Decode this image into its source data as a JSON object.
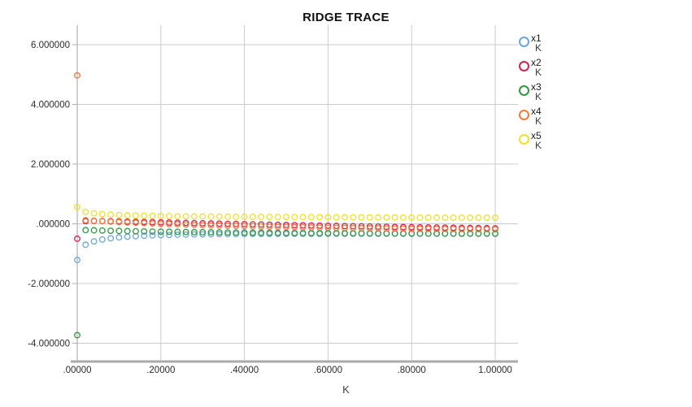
{
  "window": {
    "background": "#FFFFFF"
  },
  "colors": {
    "grid": "#CBCBCB",
    "axis": "#B0B0B0",
    "axis_bottom": "#A9A9A9",
    "tick_text": "#2b2b2b",
    "title_text": "#111111"
  },
  "chart_data": {
    "type": "scatter",
    "title": "RIDGE TRACE",
    "xlabel": "K",
    "ylabel": "",
    "marker": "open-circle",
    "grid": true,
    "legend_position": "right",
    "xlim": [
      0,
      1.054
    ],
    "ylim": [
      -4.56,
      6.65
    ],
    "x_ticks": [
      0,
      0.2,
      0.4,
      0.6,
      0.8,
      1.0
    ],
    "x_tick_labels": [
      ".00000",
      ".20000",
      ".40000",
      ".60000",
      ".80000",
      "1.00000"
    ],
    "y_ticks": [
      6,
      4,
      2,
      0,
      -2,
      -4
    ],
    "y_tick_labels": [
      "6.000000",
      "4.000000",
      "2.000000",
      ".000000",
      "-2.000000",
      "-4.000000"
    ],
    "k": [
      0.0,
      0.02,
      0.04,
      0.06,
      0.08,
      0.1,
      0.12,
      0.14,
      0.16,
      0.18,
      0.2,
      0.22,
      0.24,
      0.26,
      0.28,
      0.3,
      0.32,
      0.34,
      0.36,
      0.38,
      0.4,
      0.42,
      0.44,
      0.46,
      0.48,
      0.5,
      0.52,
      0.54,
      0.56,
      0.58,
      0.6,
      0.62,
      0.64,
      0.66,
      0.68,
      0.7,
      0.72,
      0.74,
      0.76,
      0.78,
      0.8,
      0.82,
      0.84,
      0.86,
      0.88,
      0.9,
      0.92,
      0.94,
      0.96,
      0.98,
      1.0
    ],
    "series": [
      {
        "name": "x1",
        "sublabel": "K",
        "color": "#6CA6D9",
        "values": [
          -1.21,
          -0.7,
          -0.59,
          -0.525,
          -0.485,
          -0.455,
          -0.43,
          -0.415,
          -0.4,
          -0.39,
          -0.38,
          -0.373,
          -0.367,
          -0.361,
          -0.356,
          -0.352,
          -0.349,
          -0.346,
          -0.344,
          -0.342,
          -0.341,
          -0.34,
          -0.339,
          -0.338,
          -0.337,
          -0.336,
          -0.335,
          -0.335,
          -0.334,
          -0.334,
          -0.333,
          -0.333,
          -0.332,
          -0.332,
          -0.331,
          -0.331,
          -0.331,
          -0.33,
          -0.33,
          -0.33,
          -0.33,
          -0.329,
          -0.329,
          -0.329,
          -0.329,
          -0.329,
          -0.328,
          -0.328,
          -0.328,
          -0.328,
          -0.328
        ]
      },
      {
        "name": "x2",
        "sublabel": "K",
        "color": "#D02355",
        "values": [
          -0.5,
          0.09,
          0.095,
          0.092,
          0.087,
          0.08,
          0.074,
          0.068,
          0.061,
          0.055,
          0.048,
          0.042,
          0.035,
          0.029,
          0.023,
          0.017,
          0.011,
          0.005,
          -0.001,
          -0.006,
          -0.012,
          -0.018,
          -0.023,
          -0.029,
          -0.034,
          -0.04,
          -0.045,
          -0.05,
          -0.056,
          -0.061,
          -0.066,
          -0.071,
          -0.076,
          -0.08,
          -0.085,
          -0.09,
          -0.094,
          -0.099,
          -0.103,
          -0.108,
          -0.112,
          -0.116,
          -0.12,
          -0.124,
          -0.128,
          -0.132,
          -0.136,
          -0.139,
          -0.143,
          -0.146,
          -0.15
        ]
      },
      {
        "name": "x3",
        "sublabel": "K",
        "color": "#339540",
        "values": [
          -3.73,
          -0.21,
          -0.218,
          -0.225,
          -0.232,
          -0.238,
          -0.244,
          -0.249,
          -0.254,
          -0.259,
          -0.263,
          -0.267,
          -0.271,
          -0.274,
          -0.278,
          -0.281,
          -0.284,
          -0.287,
          -0.29,
          -0.293,
          -0.295,
          -0.297,
          -0.299,
          -0.301,
          -0.303,
          -0.305,
          -0.307,
          -0.309,
          -0.31,
          -0.312,
          -0.313,
          -0.314,
          -0.316,
          -0.317,
          -0.318,
          -0.319,
          -0.32,
          -0.321,
          -0.322,
          -0.323,
          -0.324,
          -0.325,
          -0.326,
          -0.326,
          -0.327,
          -0.328,
          -0.328,
          -0.329,
          -0.33,
          -0.33,
          -0.331
        ]
      },
      {
        "name": "x4",
        "sublabel": "K",
        "color": "#EF7C3B",
        "values": [
          4.97,
          0.12,
          0.103,
          0.087,
          0.072,
          0.058,
          0.046,
          0.034,
          0.023,
          0.012,
          0.002,
          -0.007,
          -0.016,
          -0.025,
          -0.034,
          -0.042,
          -0.05,
          -0.058,
          -0.065,
          -0.072,
          -0.078,
          -0.084,
          -0.09,
          -0.096,
          -0.102,
          -0.107,
          -0.112,
          -0.117,
          -0.122,
          -0.126,
          -0.13,
          -0.134,
          -0.138,
          -0.142,
          -0.146,
          -0.149,
          -0.152,
          -0.155,
          -0.158,
          -0.161,
          -0.164,
          -0.166,
          -0.169,
          -0.171,
          -0.173,
          -0.175,
          -0.177,
          -0.178,
          -0.18,
          -0.181,
          -0.183
        ]
      },
      {
        "name": "x5",
        "sublabel": "K",
        "color": "#EEE02F",
        "values": [
          0.56,
          0.4,
          0.352,
          0.325,
          0.307,
          0.294,
          0.286,
          0.277,
          0.27,
          0.265,
          0.26,
          0.257,
          0.254,
          0.251,
          0.248,
          0.245,
          0.243,
          0.241,
          0.239,
          0.237,
          0.235,
          0.233,
          0.232,
          0.23,
          0.229,
          0.227,
          0.226,
          0.225,
          0.223,
          0.222,
          0.221,
          0.22,
          0.218,
          0.217,
          0.216,
          0.215,
          0.214,
          0.213,
          0.212,
          0.211,
          0.21,
          0.209,
          0.208,
          0.208,
          0.207,
          0.206,
          0.205,
          0.204,
          0.204,
          0.203,
          0.202
        ]
      }
    ]
  }
}
